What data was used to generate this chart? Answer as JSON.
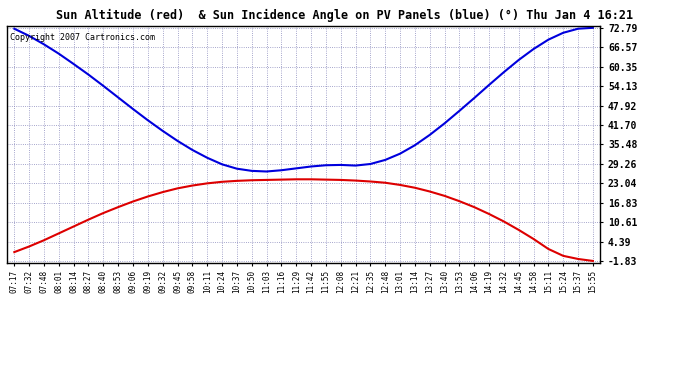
{
  "title": "Sun Altitude (red)  & Sun Incidence Angle on PV Panels (blue) (°) Thu Jan 4 16:21",
  "copyright": "Copyright 2007 Cartronics.com",
  "yticks": [
    72.79,
    66.57,
    60.35,
    54.13,
    47.92,
    41.7,
    35.48,
    29.26,
    23.04,
    16.83,
    10.61,
    4.39,
    -1.83
  ],
  "ymin": -1.83,
  "ymax": 72.79,
  "bg_color": "#ffffff",
  "plot_bg_color": "#ffffff",
  "grid_color": "#8888bb",
  "blue_line_color": "#0000dd",
  "red_line_color": "#dd0000",
  "x_labels": [
    "07:17",
    "07:32",
    "07:48",
    "08:01",
    "08:14",
    "08:27",
    "08:40",
    "08:53",
    "09:06",
    "09:19",
    "09:32",
    "09:45",
    "09:58",
    "10:11",
    "10:24",
    "10:37",
    "10:50",
    "11:03",
    "11:16",
    "11:29",
    "11:42",
    "11:55",
    "12:08",
    "12:21",
    "12:35",
    "12:48",
    "13:01",
    "13:14",
    "13:27",
    "13:40",
    "13:53",
    "14:06",
    "14:19",
    "14:32",
    "14:45",
    "14:58",
    "15:11",
    "15:24",
    "15:37",
    "15:55"
  ],
  "blue_data": [
    72.5,
    70.2,
    67.5,
    64.5,
    61.2,
    57.8,
    54.2,
    50.5,
    46.8,
    43.2,
    39.8,
    36.6,
    33.7,
    31.2,
    29.1,
    27.7,
    27.0,
    26.8,
    27.2,
    27.8,
    28.4,
    28.8,
    28.9,
    28.7,
    29.2,
    30.5,
    32.5,
    35.2,
    38.5,
    42.2,
    46.2,
    50.3,
    54.5,
    58.6,
    62.5,
    66.0,
    69.0,
    71.2,
    72.5,
    72.79
  ],
  "red_data": [
    1.0,
    2.8,
    4.8,
    7.0,
    9.2,
    11.4,
    13.5,
    15.4,
    17.2,
    18.8,
    20.2,
    21.4,
    22.3,
    23.0,
    23.5,
    23.8,
    24.0,
    24.1,
    24.2,
    24.3,
    24.3,
    24.2,
    24.1,
    23.9,
    23.6,
    23.2,
    22.5,
    21.6,
    20.4,
    19.0,
    17.3,
    15.4,
    13.2,
    10.8,
    8.1,
    5.2,
    2.0,
    -0.2,
    -1.2,
    -1.83
  ]
}
